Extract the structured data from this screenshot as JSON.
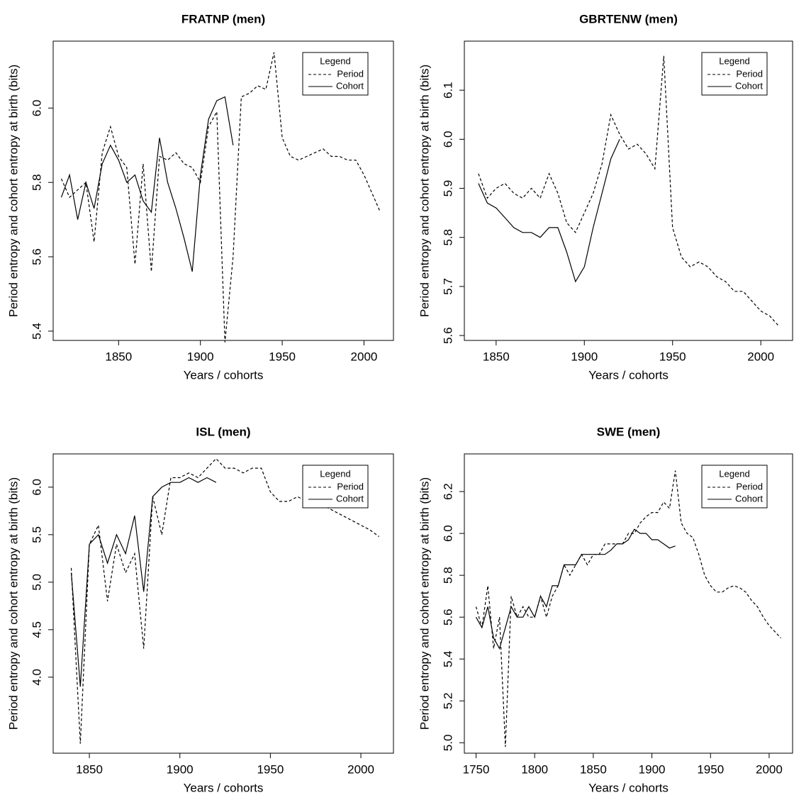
{
  "chart_data": [
    {
      "type": "line",
      "title": "FRATNP (men)",
      "x_label": "Years / cohorts",
      "y_label": "Period entropy and cohort entropy at birth (bits)",
      "legend_title": "Legend",
      "legend": "top-right",
      "x": [
        1815,
        1820,
        1825,
        1830,
        1835,
        1840,
        1845,
        1850,
        1855,
        1860,
        1865,
        1870,
        1875,
        1880,
        1885,
        1890,
        1895,
        1900,
        1905,
        1910,
        1915,
        1920,
        1925,
        1930,
        1935,
        1940,
        1945,
        1950,
        1955,
        1960,
        1965,
        1970,
        1975,
        1980,
        1985,
        1990,
        1995,
        2000,
        2005,
        2010
      ],
      "series": [
        {
          "name": "Period",
          "color": "#000000",
          "dash": "dashed",
          "values": [
            5.81,
            5.76,
            5.78,
            5.8,
            5.64,
            5.88,
            5.95,
            5.87,
            5.84,
            5.58,
            5.85,
            5.56,
            5.87,
            5.86,
            5.88,
            5.85,
            5.84,
            5.8,
            5.95,
            5.99,
            5.37,
            5.6,
            6.03,
            6.04,
            6.06,
            6.05,
            6.15,
            5.92,
            5.87,
            5.86,
            5.87,
            5.88,
            5.89,
            5.87,
            5.87,
            5.86,
            5.86,
            5.82,
            5.77,
            5.72
          ]
        },
        {
          "name": "Cohort",
          "color": "#000000",
          "dash": "solid",
          "values": [
            5.76,
            5.82,
            5.7,
            5.8,
            5.73,
            5.85,
            5.9,
            5.86,
            5.8,
            5.82,
            5.75,
            5.72,
            5.92,
            5.8,
            5.73,
            5.65,
            5.56,
            5.82,
            5.97,
            6.02,
            6.03,
            5.9,
            null,
            null,
            null,
            null,
            null,
            null,
            null,
            null,
            null,
            null,
            null,
            null,
            null,
            null,
            null,
            null,
            null,
            null
          ]
        }
      ],
      "xlim": [
        1810,
        2018
      ],
      "xticks": [
        1850,
        1900,
        1950,
        2000
      ],
      "ylim": [
        5.375,
        6.18
      ],
      "yticks": [
        5.4,
        5.6,
        5.8,
        {
          "value": 6,
          "label": "6.0"
        }
      ]
    },
    {
      "type": "line",
      "title": "GBRTENW (men)",
      "x_label": "Years / cohorts",
      "y_label": "Period entropy and cohort entropy at birth (bits)",
      "legend_title": "Legend",
      "legend": "top-right",
      "x": [
        1840,
        1845,
        1850,
        1855,
        1860,
        1865,
        1870,
        1875,
        1880,
        1885,
        1890,
        1895,
        1900,
        1905,
        1910,
        1915,
        1920,
        1925,
        1930,
        1935,
        1940,
        1945,
        1950,
        1955,
        1960,
        1965,
        1970,
        1975,
        1980,
        1985,
        1990,
        1995,
        2000,
        2005,
        2010
      ],
      "series": [
        {
          "name": "Period",
          "color": "#000000",
          "dash": "dashed",
          "values": [
            5.93,
            5.88,
            5.9,
            5.91,
            5.89,
            5.88,
            5.9,
            5.88,
            5.93,
            5.89,
            5.83,
            5.81,
            5.85,
            5.89,
            5.95,
            6.05,
            6.01,
            5.98,
            5.99,
            5.97,
            5.94,
            6.17,
            5.82,
            5.76,
            5.74,
            5.75,
            5.74,
            5.72,
            5.71,
            5.69,
            5.69,
            5.67,
            5.65,
            5.64,
            5.62
          ]
        },
        {
          "name": "Cohort",
          "color": "#000000",
          "dash": "solid",
          "values": [
            5.91,
            5.87,
            5.86,
            5.84,
            5.82,
            5.81,
            5.81,
            5.8,
            5.82,
            5.82,
            5.77,
            5.71,
            5.74,
            5.82,
            5.89,
            5.96,
            6.0,
            null,
            null,
            null,
            null,
            null,
            null,
            null,
            null,
            null,
            null,
            null,
            null,
            null,
            null,
            null,
            null,
            null,
            null
          ]
        }
      ],
      "xlim": [
        1832,
        2018
      ],
      "xticks": [
        1850,
        1900,
        1950,
        2000
      ],
      "ylim": [
        5.59,
        6.2
      ],
      "yticks": [
        5.6,
        5.7,
        5.8,
        5.9,
        {
          "value": 6,
          "label": "6.0"
        },
        6.1
      ]
    },
    {
      "type": "line",
      "title": "ISL (men)",
      "x_label": "Years / cohorts",
      "y_label": "Period entropy and cohort entropy at birth (bits)",
      "legend_title": "Legend",
      "legend": "top-right",
      "x": [
        1840,
        1845,
        1850,
        1855,
        1860,
        1865,
        1870,
        1875,
        1880,
        1885,
        1890,
        1895,
        1900,
        1905,
        1910,
        1915,
        1920,
        1925,
        1930,
        1935,
        1940,
        1945,
        1950,
        1955,
        1960,
        1965,
        1970,
        1975,
        1980,
        1985,
        1990,
        1995,
        2000,
        2005,
        2010
      ],
      "series": [
        {
          "name": "Period",
          "color": "#000000",
          "dash": "dashed",
          "values": [
            5.15,
            3.3,
            5.4,
            5.6,
            4.8,
            5.4,
            5.1,
            5.3,
            4.3,
            5.9,
            5.5,
            6.1,
            6.1,
            6.15,
            6.1,
            6.2,
            6.3,
            6.2,
            6.2,
            6.15,
            6.2,
            6.2,
            5.95,
            5.85,
            5.85,
            5.9,
            5.85,
            5.9,
            5.8,
            5.75,
            5.7,
            5.65,
            5.6,
            5.55,
            5.48
          ]
        },
        {
          "name": "Cohort",
          "color": "#000000",
          "dash": "solid",
          "values": [
            5.1,
            3.9,
            5.4,
            5.5,
            5.2,
            5.5,
            5.3,
            5.7,
            4.9,
            5.9,
            6.0,
            6.05,
            6.05,
            6.1,
            6.05,
            6.1,
            6.05,
            null,
            null,
            null,
            null,
            null,
            null,
            null,
            null,
            null,
            null,
            null,
            null,
            null,
            null,
            null,
            null,
            null,
            null
          ]
        }
      ],
      "xlim": [
        1830,
        2018
      ],
      "xticks": [
        1850,
        1900,
        1950,
        2000
      ],
      "ylim": [
        3.2,
        6.35
      ],
      "yticks": [
        {
          "value": 4,
          "label": "4.0"
        },
        4.5,
        {
          "value": 5,
          "label": "5.0"
        },
        5.5,
        {
          "value": 6,
          "label": "6.0"
        }
      ]
    },
    {
      "type": "line",
      "title": "SWE (men)",
      "x_label": "Years / cohorts",
      "y_label": "Period entropy and cohort entropy at birth (bits)",
      "legend_title": "Legend",
      "legend": "top-right",
      "x": [
        1750,
        1755,
        1760,
        1765,
        1770,
        1775,
        1780,
        1785,
        1790,
        1795,
        1800,
        1805,
        1810,
        1815,
        1820,
        1825,
        1830,
        1835,
        1840,
        1845,
        1850,
        1855,
        1860,
        1865,
        1870,
        1875,
        1880,
        1885,
        1890,
        1895,
        1900,
        1905,
        1910,
        1915,
        1920,
        1925,
        1930,
        1935,
        1940,
        1945,
        1950,
        1955,
        1960,
        1965,
        1970,
        1975,
        1980,
        1985,
        1990,
        1995,
        2000,
        2005,
        2010
      ],
      "series": [
        {
          "name": "Period",
          "color": "#000000",
          "dash": "dashed",
          "values": [
            5.65,
            5.55,
            5.75,
            5.45,
            5.6,
            4.98,
            5.7,
            5.6,
            5.65,
            5.6,
            5.6,
            5.7,
            5.6,
            5.7,
            5.75,
            5.85,
            5.8,
            5.85,
            5.9,
            5.85,
            5.9,
            5.9,
            5.95,
            5.95,
            5.95,
            5.95,
            6.0,
            6.0,
            6.05,
            6.08,
            6.1,
            6.1,
            6.15,
            6.12,
            6.3,
            6.05,
            6.0,
            5.98,
            5.9,
            5.8,
            5.75,
            5.72,
            5.72,
            5.74,
            5.75,
            5.74,
            5.72,
            5.68,
            5.65,
            5.6,
            5.56,
            5.53,
            5.5
          ]
        },
        {
          "name": "Cohort",
          "color": "#000000",
          "dash": "solid",
          "values": [
            5.6,
            5.55,
            5.65,
            5.5,
            5.45,
            5.55,
            5.65,
            5.6,
            5.6,
            5.65,
            5.6,
            5.7,
            5.65,
            5.75,
            5.75,
            5.85,
            5.85,
            5.85,
            5.9,
            5.9,
            5.9,
            5.9,
            5.9,
            5.92,
            5.95,
            5.95,
            5.97,
            6.02,
            6.0,
            6.0,
            5.97,
            5.97,
            5.95,
            5.93,
            5.94,
            null,
            null,
            null,
            null,
            null,
            null,
            null,
            null,
            null,
            null,
            null,
            null,
            null,
            null,
            null,
            null,
            null,
            null
          ]
        }
      ],
      "xlim": [
        1740,
        2020
      ],
      "xticks": [
        1750,
        1800,
        1850,
        1900,
        1950,
        2000
      ],
      "ylim": [
        4.95,
        6.38
      ],
      "yticks": [
        {
          "value": 5,
          "label": "5.0"
        },
        5.2,
        5.4,
        5.6,
        5.8,
        {
          "value": 6,
          "label": "6.0"
        },
        6.2
      ]
    }
  ]
}
